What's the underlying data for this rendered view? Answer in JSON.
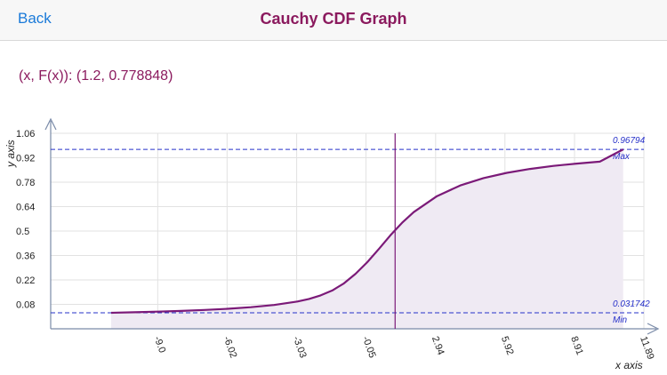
{
  "nav": {
    "back_label": "Back",
    "title": "Cauchy CDF Graph"
  },
  "readout": {
    "text": "(x, F(x)): (1.2, 0.778848)"
  },
  "colors": {
    "curve": "#7b1a78",
    "fill": "#efeaf3",
    "reference_lines": "#2630c9",
    "grid": "#e2e2e2",
    "axes": "#7a8ba8",
    "title": "#8b1a5e",
    "back": "#1a7ad9"
  },
  "chart_data": {
    "type": "line",
    "series": [
      {
        "x": [
          -11.0,
          -10.0,
          -9.0,
          -8.0,
          -7.0,
          -6.0,
          -5.0,
          -4.0,
          -3.0,
          -2.5,
          -2.0,
          -1.5,
          -1.0,
          -0.5,
          0.0,
          0.5,
          1.0,
          1.5,
          2.0,
          3.0,
          4.0,
          5.0,
          6.0,
          7.0,
          8.0,
          9.0,
          10.0,
          11.0
        ],
        "values": [
          0.031742,
          0.0349,
          0.0383,
          0.0425,
          0.0477,
          0.0545,
          0.0636,
          0.0765,
          0.0962,
          0.1111,
          0.1312,
          0.1595,
          0.2,
          0.2549,
          0.3211,
          0.3974,
          0.4757,
          0.5476,
          0.6084,
          0.7,
          0.7613,
          0.8035,
          0.8336,
          0.8559,
          0.873,
          0.8866,
          0.8976,
          0.96794
        ]
      }
    ],
    "x_tick_labels": [
      "-9.0",
      "-6.02",
      "-3.03",
      "-0.05",
      "2.94",
      "5.92",
      "8.91",
      "11.89"
    ],
    "x_ticks": [
      -9.0,
      -6.02,
      -3.03,
      -0.05,
      2.94,
      5.92,
      8.91,
      11.89
    ],
    "y_tick_labels": [
      "1.06",
      "0.92",
      "0.78",
      "0.64",
      "0.5",
      "0.36",
      "0.22",
      "0.08"
    ],
    "y_ticks": [
      1.06,
      0.92,
      0.78,
      0.64,
      0.5,
      0.36,
      0.22,
      0.08
    ],
    "xlim": [
      -13.6,
      11.89
    ],
    "ylim": [
      -0.06,
      1.06
    ],
    "xlabel": "x axis",
    "ylabel": "y axis",
    "selected_x": 1.2,
    "selected_y": 0.778848,
    "max_value": 0.96794,
    "max_value_label": "0.96794",
    "max_label": "Max",
    "min_value": 0.031742,
    "min_value_label": "0.031742",
    "min_label": "Min",
    "grid": true
  }
}
